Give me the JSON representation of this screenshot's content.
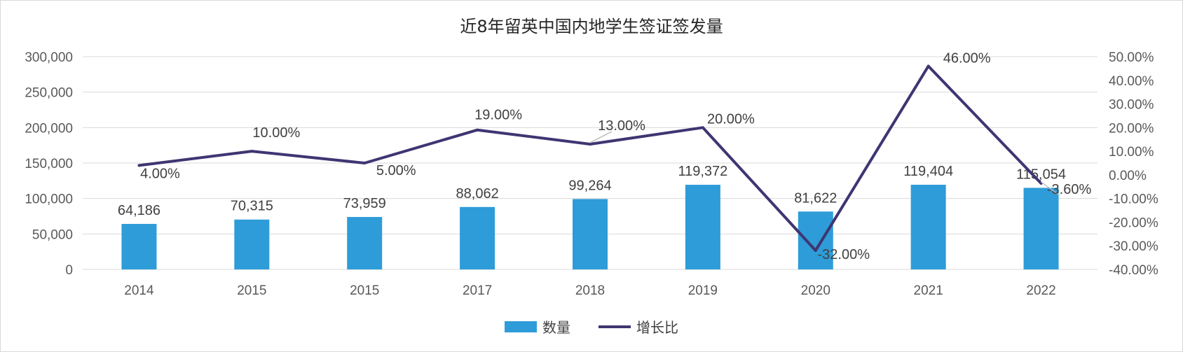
{
  "chart_data": {
    "type": "bar+line",
    "title": "近8年留英中国内地学生签证签发量",
    "categories": [
      "2014",
      "2015",
      "2015",
      "2017",
      "2018",
      "2019",
      "2020",
      "2021",
      "2022"
    ],
    "series": [
      {
        "name": "数量",
        "type": "bar",
        "axis": "left",
        "color": "#2e9cd8",
        "values": [
          64186,
          70315,
          73959,
          88062,
          99264,
          119372,
          81622,
          119404,
          115054
        ],
        "labels": [
          "64,186",
          "70,315",
          "73,959",
          "88,062",
          "99,264",
          "119,372",
          "81,622",
          "119,404",
          "115,054"
        ]
      },
      {
        "name": "增长比",
        "type": "line",
        "axis": "right",
        "color": "#3e3672",
        "values": [
          4.0,
          10.0,
          5.0,
          19.0,
          13.0,
          20.0,
          -32.0,
          46.0,
          -3.6
        ],
        "labels": [
          "4.00%",
          "10.00%",
          "5.00%",
          "19.00%",
          "13.00%",
          "20.00%",
          "-32.00%",
          "46.00%",
          "-3.60%"
        ]
      }
    ],
    "y_left": {
      "range": [
        0,
        300000
      ],
      "ticks": [
        "0",
        "50,000",
        "100,000",
        "150,000",
        "200,000",
        "250,000",
        "300,000"
      ]
    },
    "y_right": {
      "range": [
        -40,
        50
      ],
      "ticks": [
        "-40.00%",
        "-30.00%",
        "-20.00%",
        "-10.00%",
        "0.00%",
        "10.00%",
        "20.00%",
        "30.00%",
        "40.00%",
        "50.00%"
      ]
    },
    "grid": true,
    "legend_position": "bottom"
  }
}
